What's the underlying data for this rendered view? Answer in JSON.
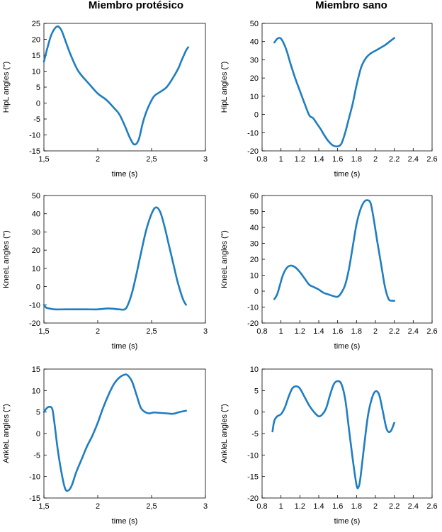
{
  "titles": {
    "left": "Miembro protésico",
    "right": "Miembro sano"
  },
  "chart_data": [
    {
      "type": "line",
      "column": "left",
      "row": 0,
      "xlabel": "time (s)",
      "ylabel": "HipL angles (°)",
      "xlim": [
        1.5,
        3
      ],
      "ylim": [
        -15,
        25
      ],
      "xticks": [
        1.5,
        2,
        2.5,
        3
      ],
      "xtick_labels": [
        "1,5",
        "2",
        "2,5",
        "3"
      ],
      "yticks": [
        -15,
        -10,
        -5,
        0,
        5,
        10,
        15,
        20,
        25
      ],
      "series": [
        {
          "name": "HipL",
          "x": [
            1.5,
            1.53,
            1.57,
            1.62,
            1.66,
            1.7,
            1.75,
            1.82,
            1.92,
            2.0,
            2.08,
            2.15,
            2.2,
            2.25,
            2.3,
            2.34,
            2.38,
            2.42,
            2.46,
            2.52,
            2.58,
            2.64,
            2.7,
            2.75,
            2.78,
            2.8,
            2.82,
            2.84
          ],
          "y": [
            13,
            17,
            21.5,
            24,
            23,
            19.5,
            15,
            10,
            6,
            3,
            1,
            -1.5,
            -3.5,
            -7,
            -11,
            -13,
            -11.5,
            -6,
            -2,
            2,
            3.5,
            5,
            8,
            11,
            13.5,
            15,
            16.5,
            17.5
          ]
        }
      ]
    },
    {
      "type": "line",
      "column": "right",
      "row": 0,
      "xlabel": "time (s)",
      "ylabel": "HipL angles (°)",
      "xlim": [
        0.8,
        2.6
      ],
      "ylim": [
        -20,
        50
      ],
      "xticks": [
        0.8,
        1,
        1.2,
        1.4,
        1.6,
        1.8,
        2,
        2.2,
        2.4,
        2.6
      ],
      "xtick_labels": [
        "0.8",
        "1",
        "1.2",
        "1.4",
        "1.6",
        "1.8",
        "2",
        "2.2",
        "2.4",
        "2.6"
      ],
      "yticks": [
        -20,
        -10,
        0,
        10,
        20,
        30,
        40,
        50
      ],
      "series": [
        {
          "name": "HipL",
          "x": [
            0.93,
            0.96,
            0.99,
            1.02,
            1.06,
            1.1,
            1.15,
            1.2,
            1.25,
            1.3,
            1.34,
            1.38,
            1.42,
            1.46,
            1.5,
            1.55,
            1.6,
            1.64,
            1.68,
            1.72,
            1.76,
            1.8,
            1.85,
            1.9,
            1.95,
            2.0,
            2.05,
            2.1,
            2.15,
            2.2
          ],
          "y": [
            39.5,
            41.5,
            42,
            40,
            35,
            28,
            20,
            13,
            6,
            -0.5,
            -2,
            -5,
            -8,
            -11.5,
            -14.5,
            -17,
            -17.5,
            -16,
            -10,
            -2,
            6,
            16,
            26,
            31,
            33.5,
            35,
            36.5,
            38,
            40,
            42
          ]
        }
      ]
    },
    {
      "type": "line",
      "column": "left",
      "row": 1,
      "xlabel": "time (s)",
      "ylabel": "KneeL angles (°)",
      "xlim": [
        1.5,
        3
      ],
      "ylim": [
        -20,
        50
      ],
      "xticks": [
        1.5,
        2,
        2.5,
        3
      ],
      "xtick_labels": [
        "1,5",
        "2",
        "2,5",
        "3"
      ],
      "yticks": [
        -20,
        -10,
        0,
        10,
        20,
        30,
        40,
        50
      ],
      "series": [
        {
          "name": "KneeL",
          "x": [
            1.5,
            1.52,
            1.55,
            1.6,
            1.7,
            1.8,
            1.9,
            2.0,
            2.1,
            2.2,
            2.25,
            2.28,
            2.32,
            2.36,
            2.4,
            2.45,
            2.5,
            2.54,
            2.58,
            2.62,
            2.66,
            2.7,
            2.74,
            2.78,
            2.8,
            2.82
          ],
          "y": [
            -10,
            -11.5,
            -12,
            -12.5,
            -12.5,
            -12.5,
            -12.5,
            -12.5,
            -12,
            -12.5,
            -12.5,
            -10,
            -3,
            7,
            18,
            31,
            40,
            43.5,
            41,
            33,
            23,
            13,
            3,
            -5,
            -8,
            -10
          ]
        }
      ]
    },
    {
      "type": "line",
      "column": "right",
      "row": 1,
      "xlabel": "time (s)",
      "ylabel": "KneeL angles (°)",
      "xlim": [
        0.8,
        2.6
      ],
      "ylim": [
        -20,
        60
      ],
      "xticks": [
        0.8,
        1,
        1.2,
        1.4,
        1.6,
        1.8,
        2,
        2.2,
        2.4,
        2.6
      ],
      "xtick_labels": [
        "0.8",
        "1",
        "1.2",
        "1.4",
        "1.6",
        "1.8",
        "2",
        "2.2",
        "2.4",
        "2.6"
      ],
      "yticks": [
        -20,
        -10,
        0,
        10,
        20,
        30,
        40,
        50,
        60
      ],
      "series": [
        {
          "name": "KneeL",
          "x": [
            0.93,
            0.96,
            0.99,
            1.02,
            1.06,
            1.1,
            1.15,
            1.2,
            1.25,
            1.3,
            1.35,
            1.4,
            1.45,
            1.5,
            1.55,
            1.6,
            1.64,
            1.68,
            1.72,
            1.76,
            1.8,
            1.84,
            1.88,
            1.92,
            1.95,
            1.98,
            2.02,
            2.06,
            2.1,
            2.14,
            2.18,
            2.2
          ],
          "y": [
            -5,
            -2,
            4,
            10,
            14.5,
            16,
            15,
            12,
            8,
            4,
            2.5,
            1,
            -1,
            -2,
            -3,
            -3.5,
            -1,
            4,
            14,
            28,
            42,
            51,
            56,
            57,
            55,
            46,
            31,
            17,
            3,
            -5,
            -6,
            -6
          ]
        }
      ]
    },
    {
      "type": "line",
      "column": "left",
      "row": 2,
      "xlabel": "time (s)",
      "ylabel": "AnkleL angles (°)",
      "xlim": [
        1.5,
        3
      ],
      "ylim": [
        -15,
        15
      ],
      "xticks": [
        1.5,
        2,
        2.5,
        3
      ],
      "xtick_labels": [
        "1,5",
        "2",
        "2,5",
        "3"
      ],
      "yticks": [
        -15,
        -10,
        -5,
        0,
        5,
        10,
        15
      ],
      "series": [
        {
          "name": "AnkleL",
          "x": [
            1.5,
            1.53,
            1.56,
            1.58,
            1.6,
            1.63,
            1.67,
            1.7,
            1.73,
            1.76,
            1.8,
            1.85,
            1.9,
            1.95,
            2.0,
            2.05,
            2.1,
            2.15,
            2.2,
            2.25,
            2.28,
            2.32,
            2.36,
            2.4,
            2.44,
            2.48,
            2.52,
            2.58,
            2.64,
            2.7,
            2.76,
            2.82
          ],
          "y": [
            5,
            6,
            6.2,
            5.5,
            2,
            -4,
            -10,
            -13,
            -13.2,
            -12,
            -9,
            -6,
            -3,
            -0.5,
            2.5,
            6,
            9,
            11.5,
            13,
            13.7,
            13.5,
            12,
            9,
            6,
            5,
            4.7,
            4.9,
            4.8,
            4.7,
            4.6,
            5,
            5.3
          ]
        }
      ]
    },
    {
      "type": "line",
      "column": "right",
      "row": 2,
      "xlabel": "time (s)",
      "ylabel": "AnkleL angles (°)",
      "xlim": [
        0.8,
        2.6
      ],
      "ylim": [
        -20,
        10
      ],
      "xticks": [
        0.8,
        1,
        1.2,
        1.4,
        1.6,
        1.8,
        2,
        2.2,
        2.4,
        2.6
      ],
      "xtick_labels": [
        "0.8",
        "1",
        "1.2",
        "1.4",
        "1.6",
        "1.8",
        "2",
        "2.2",
        "2.4",
        "2.6"
      ],
      "yticks": [
        -20,
        -15,
        -10,
        -5,
        0,
        5,
        10
      ],
      "series": [
        {
          "name": "AnkleL",
          "x": [
            0.91,
            0.93,
            0.96,
            1.0,
            1.04,
            1.08,
            1.12,
            1.16,
            1.2,
            1.25,
            1.3,
            1.35,
            1.4,
            1.44,
            1.48,
            1.52,
            1.56,
            1.6,
            1.64,
            1.68,
            1.72,
            1.76,
            1.8,
            1.82,
            1.84,
            1.88,
            1.92,
            1.96,
            2.0,
            2.04,
            2.08,
            2.12,
            2.16,
            2.2
          ],
          "y": [
            -4.5,
            -2,
            -1,
            -0.5,
            1,
            3.5,
            5.5,
            6,
            5.5,
            3.5,
            1.5,
            0,
            -1,
            -0.5,
            1,
            4,
            6.5,
            7.2,
            6.5,
            3,
            -4,
            -11,
            -17,
            -17.5,
            -15.5,
            -8,
            -1,
            3,
            4.8,
            4,
            0,
            -4,
            -4.5,
            -2.5
          ]
        }
      ]
    }
  ]
}
